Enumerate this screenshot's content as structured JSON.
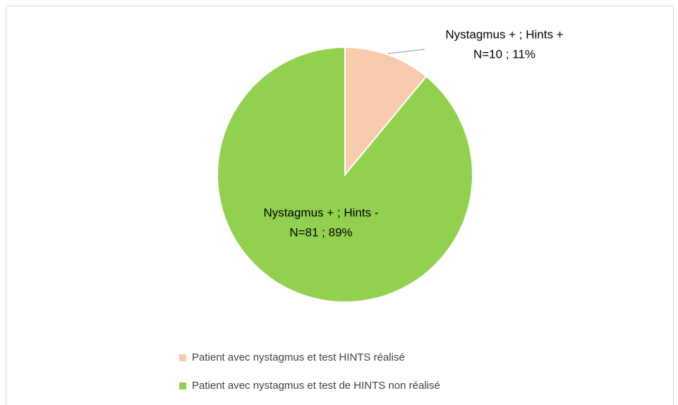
{
  "chart_data": {
    "type": "pie",
    "categories": [
      "Patient avec nystagmus et test HINTS réalisé",
      "Patient avec nystagmus et test de HINTS non réalisé"
    ],
    "values": [
      10,
      81
    ],
    "value_labels": [
      "N=10 ; 11%",
      "N=81 ; 89%"
    ],
    "slice_labels": [
      "Nystagmus + ; Hints +",
      "Nystagmus + ; Hints -"
    ],
    "colors": [
      "#f8cbad",
      "#92d050"
    ]
  }
}
